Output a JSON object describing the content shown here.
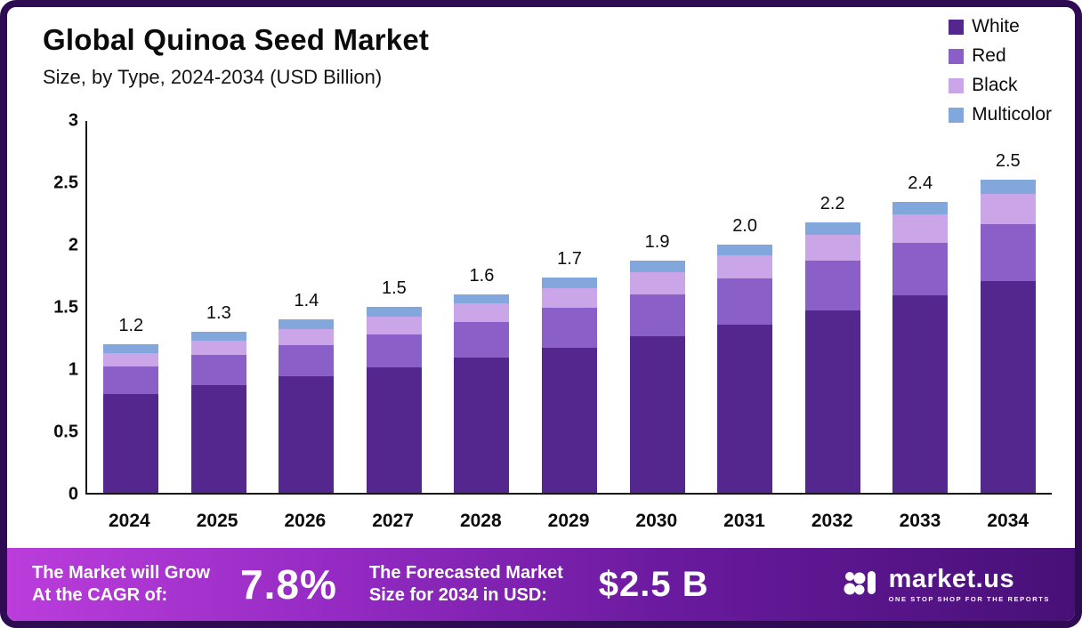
{
  "header": {
    "title": "Global Quinoa Seed Market",
    "subtitle_range": "Size, by Type, 2024-2034",
    "subtitle_units": "(USD Billion)"
  },
  "chart_data": {
    "type": "bar",
    "stacked": true,
    "title": "Global Quinoa Seed Market Size, by Type, 2024-2034 (USD Billion)",
    "categories": [
      "2024",
      "2025",
      "2026",
      "2027",
      "2028",
      "2029",
      "2030",
      "2031",
      "2032",
      "2033",
      "2034"
    ],
    "series": [
      {
        "name": "White",
        "color": "#54278f",
        "values": [
          0.8,
          0.87,
          0.94,
          1.01,
          1.09,
          1.17,
          1.26,
          1.36,
          1.47,
          1.59,
          1.71
        ]
      },
      {
        "name": "Red",
        "color": "#8a5fc8",
        "values": [
          0.22,
          0.24,
          0.25,
          0.27,
          0.29,
          0.32,
          0.34,
          0.37,
          0.4,
          0.43,
          0.46
        ]
      },
      {
        "name": "Black",
        "color": "#caa6e8",
        "values": [
          0.11,
          0.12,
          0.13,
          0.14,
          0.15,
          0.16,
          0.18,
          0.19,
          0.21,
          0.23,
          0.24
        ]
      },
      {
        "name": "Multicolor",
        "color": "#82a7dc",
        "values": [
          0.07,
          0.07,
          0.08,
          0.08,
          0.07,
          0.09,
          0.09,
          0.08,
          0.1,
          0.1,
          0.12
        ]
      }
    ],
    "totals": [
      "1.2",
      "1.3",
      "1.4",
      "1.5",
      "1.6",
      "1.7",
      "1.9",
      "2.0",
      "2.2",
      "2.4",
      "2.5"
    ],
    "yticks": [
      "3",
      "2.5",
      "2",
      "1.5",
      "1",
      "0.5",
      "0"
    ],
    "ylim": [
      0,
      3
    ],
    "xlabel": "",
    "ylabel": "",
    "grid": false,
    "legend_position": "top-right"
  },
  "footer": {
    "cagr_label_line1": "The Market will Grow",
    "cagr_label_line2": "At the CAGR of:",
    "cagr_value": "7.8%",
    "forecast_label_line1": "The Forecasted Market",
    "forecast_label_line2": "Size for 2034 in USD:",
    "forecast_value": "$2.5 B",
    "brand": "market.us",
    "tagline": "ONE STOP SHOP FOR THE REPORTS"
  },
  "colors": {
    "frame_border": "#2e0b52",
    "footer_gradient_start": "#bb3ddb",
    "footer_gradient_end": "#471077",
    "axis": "#161616"
  }
}
